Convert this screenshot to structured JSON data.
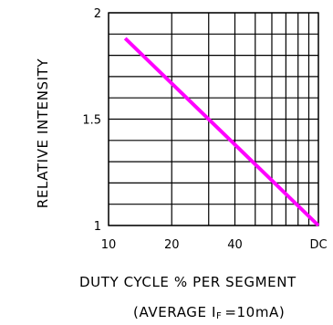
{
  "chart_data": {
    "type": "line",
    "ylabel": "RELATIVE INTENSITY",
    "xlabel": "DUTY CYCLE % PER SEGMENT",
    "x_note": {
      "prefix": "(AVERAGE  I",
      "subscript": "F",
      "suffix": "=10mA)"
    },
    "x_ticks": [
      "10",
      "20",
      "40",
      "DC"
    ],
    "x_tick_values": [
      10,
      20,
      40,
      100
    ],
    "y_ticks": [
      "2",
      "1.5",
      "1"
    ],
    "y_tick_values": [
      2,
      1.5,
      1
    ],
    "xscale": "log",
    "xlim": [
      10,
      100
    ],
    "ylim": [
      1,
      2
    ],
    "grid": true,
    "series": [
      {
        "color": "#ff00ff",
        "x": [
          12,
          100
        ],
        "y": [
          1.88,
          1.0
        ]
      }
    ]
  }
}
